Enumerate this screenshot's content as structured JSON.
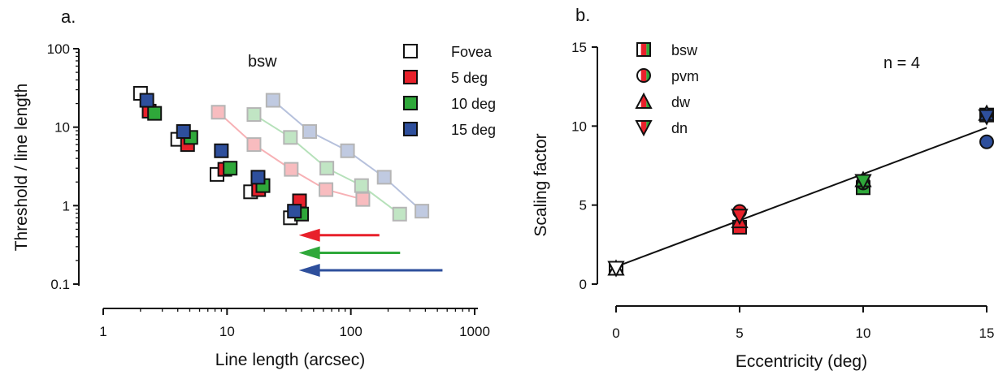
{
  "colors": {
    "fovea": "#ffffff",
    "deg5": "#e8212b",
    "deg10": "#2fa83a",
    "deg15": "#2e4f9c",
    "fit": "#111111"
  },
  "chart_data": [
    {
      "panel": "a.",
      "type": "scatter",
      "title": "bsw",
      "xlabel": "Line length (arcsec)",
      "ylabel": "Threshold / line length",
      "xscale": "log",
      "yscale": "log",
      "xlim": [
        1,
        1000
      ],
      "ylim": [
        0.1,
        100
      ],
      "xticks": [
        1,
        10,
        100,
        1000
      ],
      "xtick_labels": [
        "1",
        "10",
        "100",
        "1000"
      ],
      "yticks": [
        0.1,
        1,
        10,
        100
      ],
      "ytick_labels": [
        "0.1",
        "1",
        "10",
        "100"
      ],
      "legend_position": "top-right",
      "series": [
        {
          "name": "Fovea",
          "color_key": "fovea",
          "x": [
            2.0,
            4.0,
            8.3,
            15.5,
            32.5
          ],
          "y": [
            27,
            7.0,
            2.5,
            1.5,
            0.7
          ]
        },
        {
          "name": "5 deg",
          "color_key": "deg5",
          "x": [
            2.35,
            4.8,
            9.6,
            18.0,
            38.5
          ],
          "y": [
            16,
            6.0,
            2.9,
            1.6,
            1.15
          ]
        },
        {
          "name": "10 deg",
          "color_key": "deg10",
          "x": [
            2.6,
            5.1,
            10.6,
            19.5,
            40.0
          ],
          "y": [
            15,
            7.4,
            3.0,
            1.8,
            0.78
          ]
        },
        {
          "name": "15 deg",
          "color_key": "deg15",
          "x": [
            2.25,
            4.45,
            9.0,
            17.8,
            35.0
          ],
          "y": [
            22,
            8.8,
            5.0,
            2.3,
            0.85
          ]
        }
      ],
      "shifted_series": [
        {
          "color_key": "deg5",
          "x": [
            8.5,
            16.5,
            33.0,
            63.0,
            125.0
          ],
          "y": [
            15.5,
            6.0,
            2.9,
            1.6,
            1.2
          ]
        },
        {
          "color_key": "deg10",
          "x": [
            16.5,
            32.5,
            64.0,
            122.0,
            248.0
          ],
          "y": [
            14.5,
            7.4,
            3.0,
            1.8,
            0.78
          ]
        },
        {
          "color_key": "deg15",
          "x": [
            23.5,
            46.5,
            94.0,
            186.0,
            375.0
          ],
          "y": [
            22,
            8.8,
            5.0,
            2.3,
            0.85
          ]
        }
      ],
      "arrows": [
        {
          "color_key": "deg5",
          "y": 0.42,
          "x_from": 170,
          "x_to": 38
        },
        {
          "color_key": "deg10",
          "y": 0.25,
          "x_from": 250,
          "x_to": 38
        },
        {
          "color_key": "deg15",
          "y": 0.15,
          "x_from": 550,
          "x_to": 38
        }
      ]
    },
    {
      "panel": "b.",
      "type": "scatter",
      "title": "",
      "xlabel": "Eccentricity (deg)",
      "ylabel": "Scaling factor",
      "annotation": "n = 4",
      "xlim": [
        0,
        15
      ],
      "ylim": [
        0,
        15
      ],
      "xticks": [
        0,
        5,
        10,
        15
      ],
      "xtick_labels": [
        "0",
        "5",
        "10",
        "15"
      ],
      "yticks": [
        0,
        5,
        10,
        15
      ],
      "ytick_labels": [
        "0",
        "5",
        "10",
        "15"
      ],
      "legend_position": "top-left",
      "series": [
        {
          "name": "bsw",
          "marker": "square",
          "x": [
            0,
            5,
            10,
            15
          ],
          "y": [
            1.0,
            3.6,
            6.1,
            10.7
          ]
        },
        {
          "name": "pvm",
          "marker": "circle",
          "x": [
            0,
            5,
            10,
            15
          ],
          "y": [
            1.0,
            4.6,
            6.4,
            9.0
          ]
        },
        {
          "name": "dw",
          "marker": "triangle-up",
          "x": [
            0,
            5,
            10,
            15
          ],
          "y": [
            1.0,
            4.0,
            6.6,
            10.8
          ]
        },
        {
          "name": "dn",
          "marker": "triangle-down",
          "x": [
            0,
            5,
            10,
            15
          ],
          "y": [
            1.0,
            4.3,
            6.5,
            10.6
          ]
        }
      ],
      "fit_line": {
        "x": [
          0,
          15
        ],
        "y": [
          1.1,
          9.9
        ]
      }
    }
  ]
}
